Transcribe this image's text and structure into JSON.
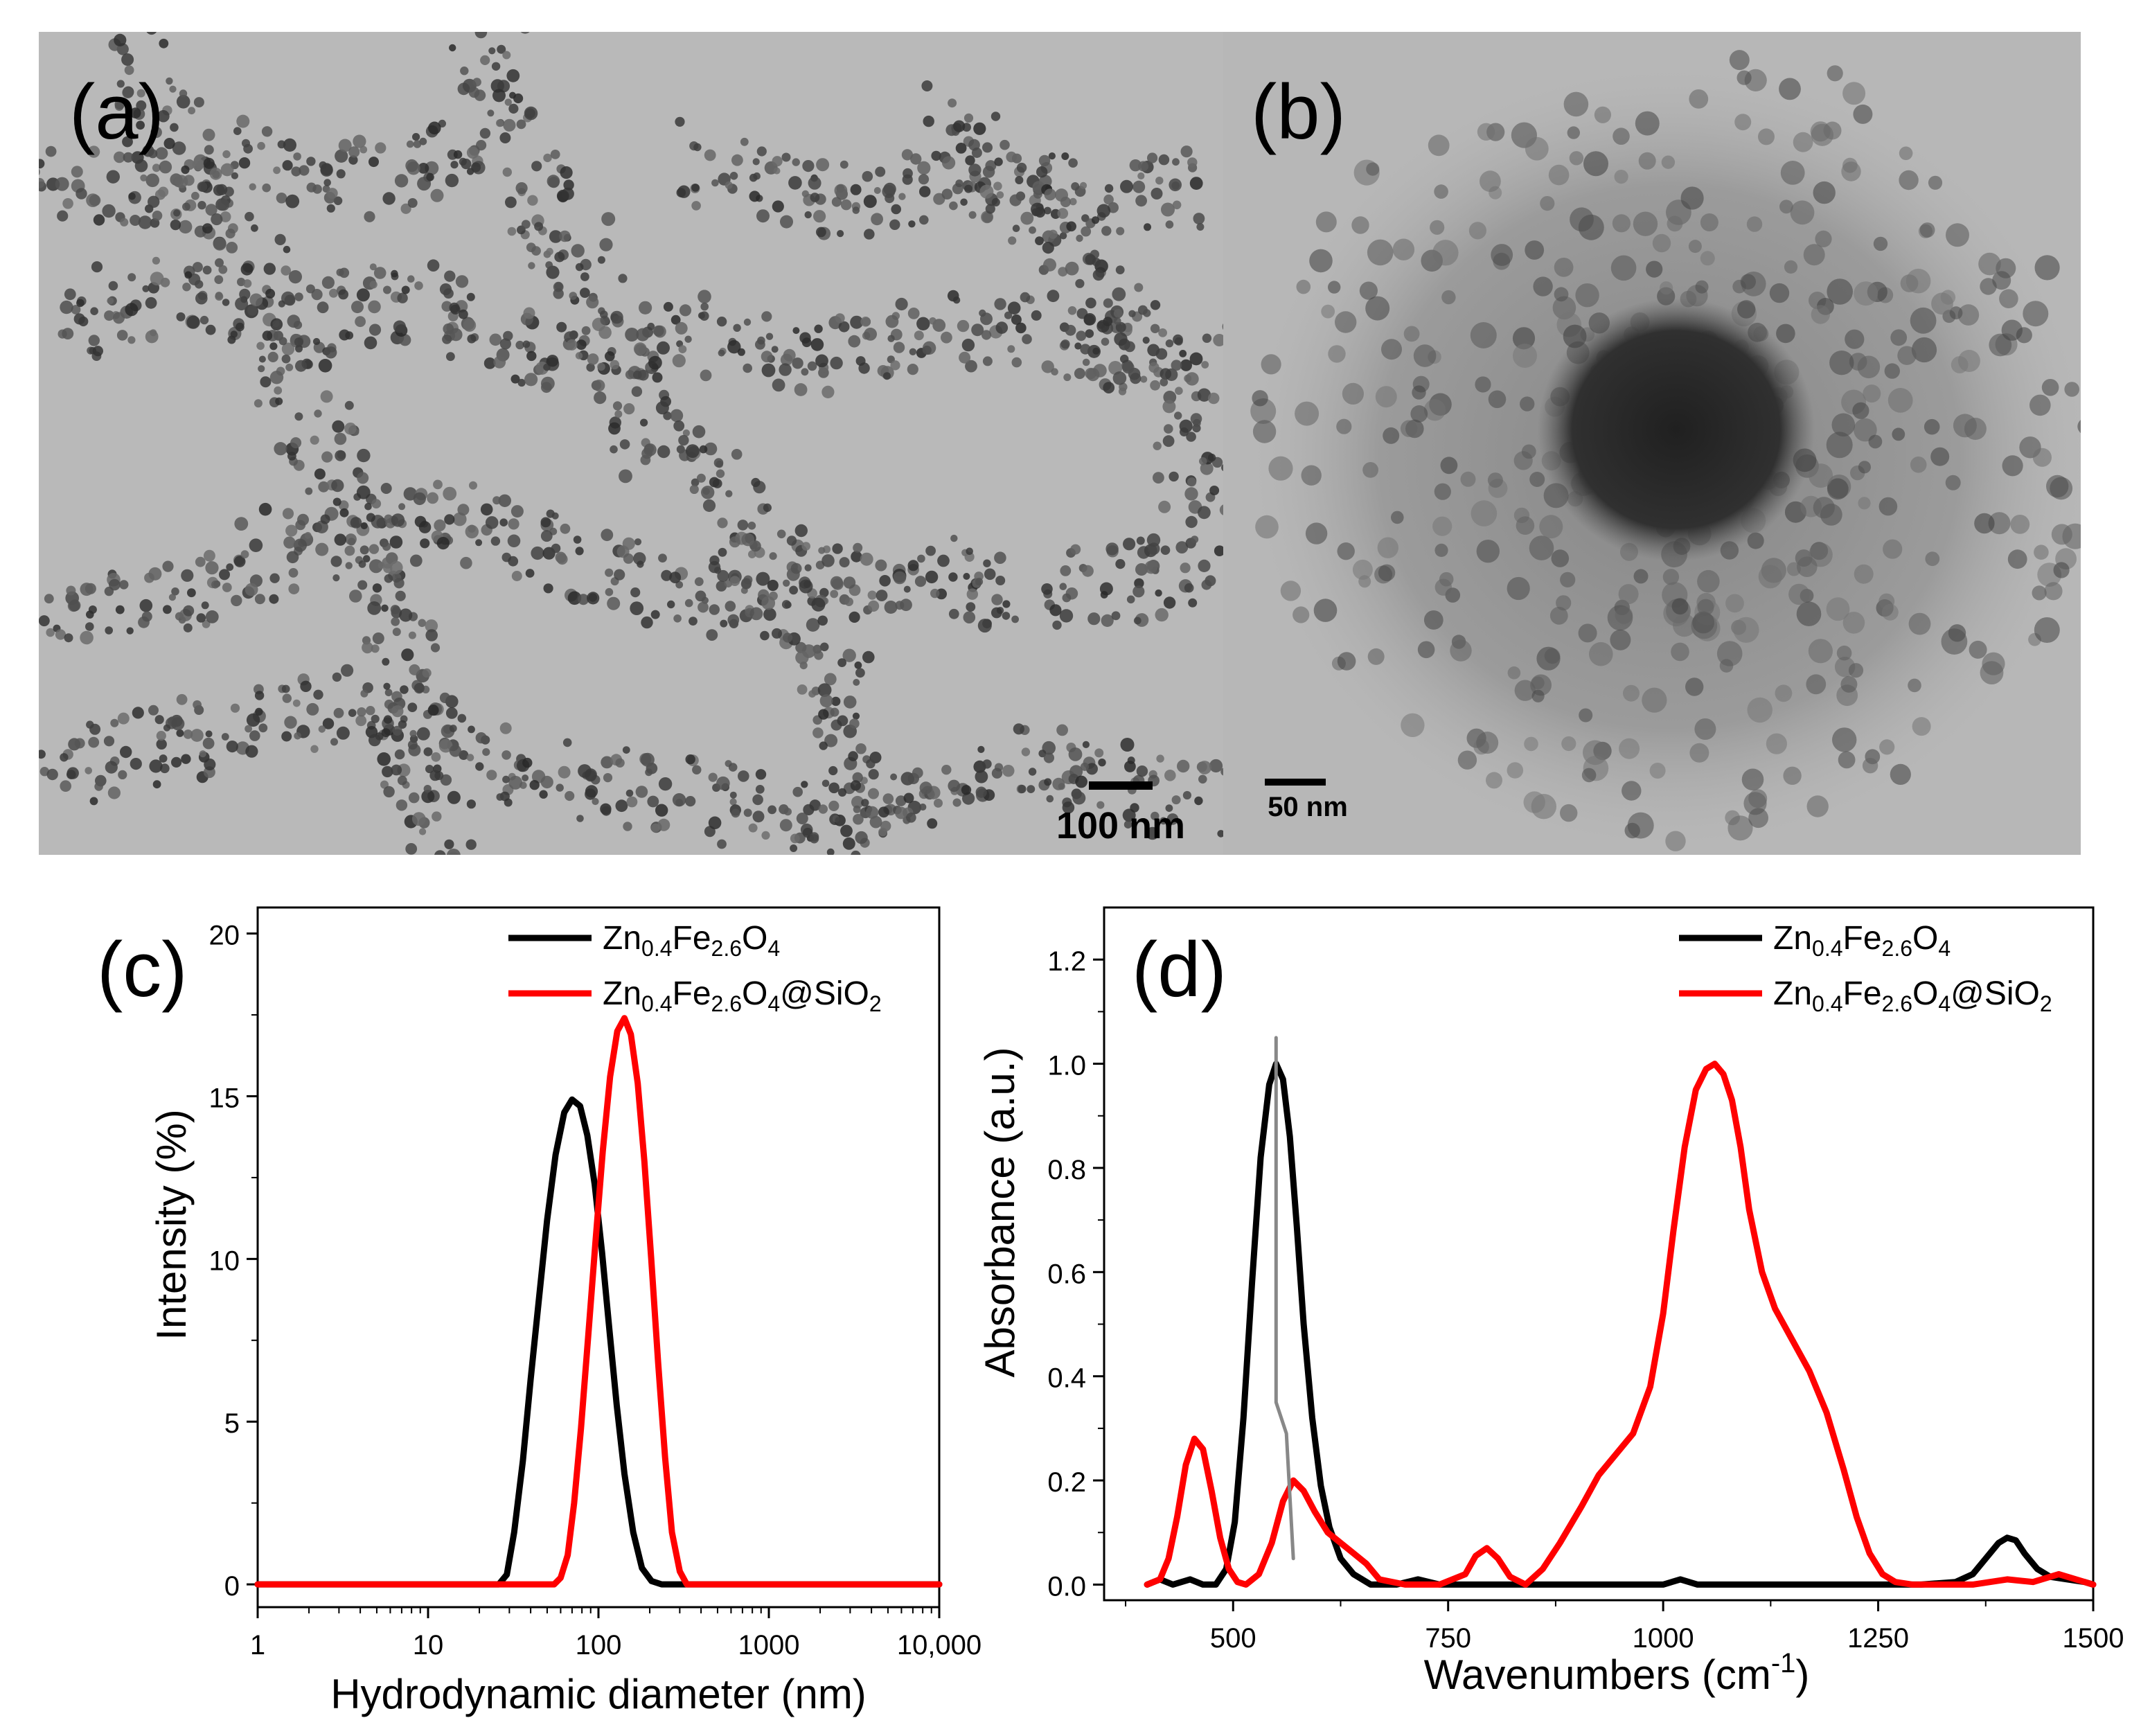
{
  "panels": {
    "a": {
      "label": "(a)",
      "scale_bar": "100 nm"
    },
    "b": {
      "label": "(b)",
      "scale_bar": "50 nm"
    }
  },
  "chart_data": [
    {
      "panel": "(c)",
      "type": "line",
      "xscale": "log",
      "xlabel": "Hydrodynamic diameter (nm)",
      "ylabel": "Intensity (%)",
      "xlim": [
        1,
        10000
      ],
      "ylim": [
        -0.7,
        20.8
      ],
      "xticks": [
        1,
        10,
        100,
        1000,
        10000
      ],
      "xtick_labels": [
        "1",
        "10",
        "100",
        "1000",
        "10,000"
      ],
      "yticks": [
        0,
        5,
        10,
        15,
        20
      ],
      "ytick_labels": [
        "0",
        "5",
        "10",
        "15",
        "20"
      ],
      "legend_position": "top-right",
      "series": [
        {
          "legend": [
            "Zn",
            "0.4",
            "Fe",
            "2.6",
            "O",
            "4",
            ""
          ],
          "color": "#000000",
          "x": [
            1,
            20,
            26,
            29,
            32,
            36,
            40,
            45,
            50,
            56,
            63,
            70,
            78,
            86,
            95,
            105,
            116,
            128,
            142,
            160,
            180,
            205,
            235,
            270,
            10000
          ],
          "y": [
            0,
            0,
            0,
            0.3,
            1.6,
            3.8,
            6.3,
            8.9,
            11.2,
            13.2,
            14.5,
            14.9,
            14.7,
            13.8,
            12.3,
            10.2,
            7.8,
            5.5,
            3.4,
            1.6,
            0.5,
            0.1,
            0,
            0,
            0
          ]
        },
        {
          "legend": [
            "Zn",
            "0.4",
            "Fe",
            "2.6",
            "O",
            "4",
            "@SiO",
            "2"
          ],
          "color": "#ff0000",
          "x": [
            1,
            55,
            60,
            66,
            72,
            79,
            87,
            96,
            106,
            117,
            129,
            142,
            155,
            170,
            186,
            204,
            224,
            246,
            270,
            300,
            330,
            10000
          ],
          "y": [
            0,
            0,
            0.2,
            0.9,
            2.5,
            4.8,
            7.6,
            10.5,
            13.3,
            15.6,
            17.0,
            17.4,
            16.9,
            15.4,
            13.0,
            10.0,
            6.8,
            3.9,
            1.6,
            0.4,
            0,
            0
          ]
        }
      ]
    },
    {
      "panel": "(d)",
      "type": "line",
      "xlabel": "Wavenumbers (cm-1)",
      "xlabel_parts": [
        "Wavenumbers (cm",
        "-1",
        ")"
      ],
      "ylabel": "Absorbance (a.u.)",
      "xlim": [
        350,
        1500
      ],
      "ylim": [
        -0.03,
        1.3
      ],
      "xticks": [
        500,
        750,
        1000,
        1250,
        1500
      ],
      "xtick_labels": [
        "500",
        "750",
        "1000",
        "1250",
        "1500"
      ],
      "yticks": [
        0.0,
        0.2,
        0.4,
        0.6,
        0.8,
        1.0,
        1.2
      ],
      "ytick_labels": [
        "0.0",
        "0.2",
        "0.4",
        "0.6",
        "0.8",
        "1.0",
        "1.2"
      ],
      "legend_position": "top-right",
      "series": [
        {
          "legend": [
            "Zn",
            "0.4",
            "Fe",
            "2.6",
            "O",
            "4",
            ""
          ],
          "color": "#000000",
          "x": [
            400,
            415,
            430,
            450,
            465,
            480,
            492,
            502,
            512,
            522,
            532,
            542,
            550,
            558,
            566,
            574,
            582,
            592,
            602,
            612,
            625,
            640,
            660,
            690,
            715,
            740,
            1000,
            1020,
            1040,
            1300,
            1340,
            1360,
            1375,
            1390,
            1400,
            1410,
            1420,
            1435,
            1450,
            1470,
            1490,
            1500
          ],
          "y": [
            0,
            0.01,
            0,
            0.01,
            0,
            0,
            0.03,
            0.12,
            0.32,
            0.58,
            0.82,
            0.96,
            1.0,
            0.97,
            0.86,
            0.69,
            0.5,
            0.32,
            0.19,
            0.11,
            0.05,
            0.02,
            0,
            0,
            0.01,
            0,
            0,
            0.01,
            0,
            0,
            0.005,
            0.02,
            0.05,
            0.08,
            0.09,
            0.085,
            0.06,
            0.03,
            0.015,
            0.01,
            0.005,
            0
          ]
        },
        {
          "legend": [
            "Zn",
            "0.4",
            "Fe",
            "2.6",
            "O",
            "4",
            "@SiO",
            "2"
          ],
          "color": "#ff0000",
          "x": [
            400,
            415,
            425,
            435,
            445,
            455,
            465,
            475,
            485,
            495,
            505,
            515,
            530,
            545,
            558,
            570,
            582,
            595,
            610,
            625,
            640,
            655,
            670,
            700,
            740,
            770,
            782,
            795,
            808,
            822,
            840,
            860,
            880,
            905,
            925,
            945,
            965,
            985,
            1000,
            1012,
            1025,
            1038,
            1050,
            1060,
            1070,
            1080,
            1090,
            1100,
            1115,
            1130,
            1150,
            1170,
            1190,
            1210,
            1225,
            1240,
            1255,
            1270,
            1290,
            1320,
            1360,
            1400,
            1430,
            1460,
            1480,
            1500
          ],
          "y": [
            0,
            0.01,
            0.05,
            0.13,
            0.23,
            0.28,
            0.26,
            0.18,
            0.09,
            0.03,
            0.005,
            0,
            0.02,
            0.08,
            0.16,
            0.2,
            0.18,
            0.14,
            0.1,
            0.08,
            0.06,
            0.04,
            0.01,
            0,
            0,
            0.02,
            0.055,
            0.07,
            0.05,
            0.015,
            0,
            0.03,
            0.08,
            0.15,
            0.21,
            0.25,
            0.29,
            0.38,
            0.52,
            0.68,
            0.84,
            0.95,
            0.99,
            1.0,
            0.98,
            0.93,
            0.84,
            0.72,
            0.6,
            0.53,
            0.47,
            0.41,
            0.33,
            0.22,
            0.13,
            0.06,
            0.02,
            0.005,
            0,
            0,
            0,
            0.01,
            0.005,
            0.02,
            0.01,
            0
          ]
        },
        {
          "legend": null,
          "color": "#888888",
          "x": [
            550,
            550,
            562,
            570
          ],
          "y": [
            1.05,
            0.35,
            0.29,
            0.05
          ]
        }
      ]
    }
  ]
}
